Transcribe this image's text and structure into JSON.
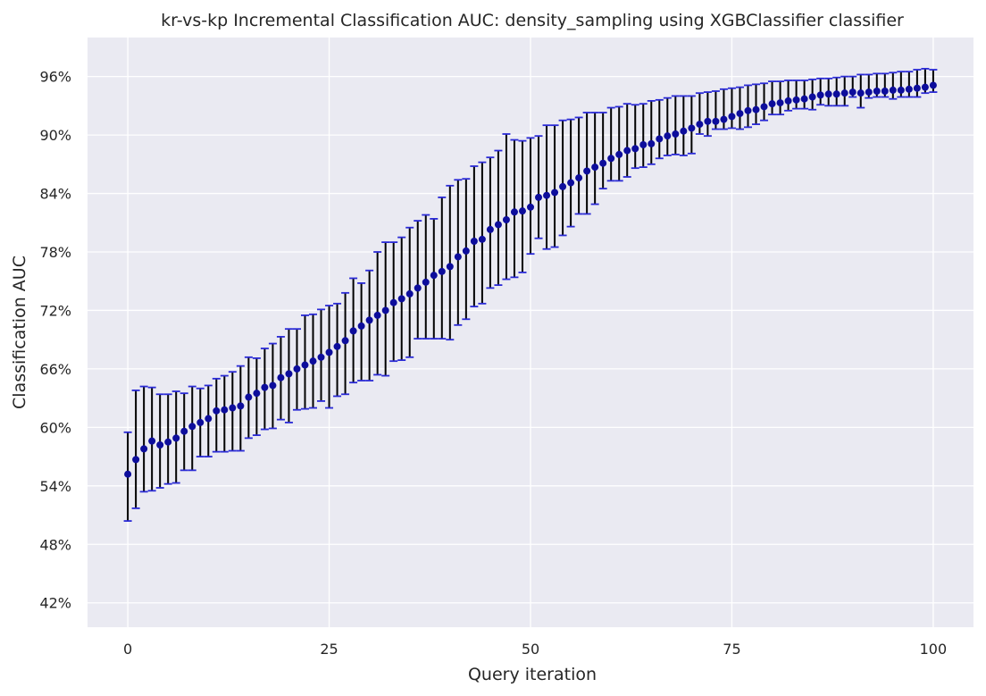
{
  "chart_data": {
    "type": "scatter",
    "title": "kr-vs-kp Incremental Classification AUC: density_sampling using XGBClassifier classifier",
    "xlabel": "Query iteration",
    "ylabel": "Classification AUC",
    "xlim": [
      -5,
      105
    ],
    "ylim": [
      0.395,
      1.0
    ],
    "xticks": [
      0,
      25,
      50,
      75,
      100
    ],
    "xtick_labels": [
      "0",
      "25",
      "50",
      "75",
      "100"
    ],
    "yticks": [
      0.42,
      0.48,
      0.54,
      0.6,
      0.66,
      0.72,
      0.78,
      0.84,
      0.9,
      0.96
    ],
    "ytick_labels": [
      "42%",
      "48%",
      "54%",
      "60%",
      "66%",
      "72%",
      "78%",
      "84%",
      "90%",
      "96%"
    ],
    "grid": true,
    "colors": {
      "background": "#eaeaf2",
      "grid": "#ffffff",
      "marker": "#0d0d9c",
      "cap": "#2a2ad6",
      "errorbar": "#000000"
    },
    "series": [
      {
        "x": [
          0,
          1,
          2,
          3,
          4,
          5,
          6,
          7,
          8,
          9,
          10,
          11,
          12,
          13,
          14,
          15,
          16,
          17,
          18,
          19,
          20,
          21,
          22,
          23,
          24,
          25,
          26,
          27,
          28,
          29,
          30,
          31,
          32,
          33,
          34,
          35,
          36,
          37,
          38,
          39,
          40,
          41,
          42,
          43,
          44,
          45,
          46,
          47,
          48,
          49,
          50,
          51,
          52,
          53,
          54,
          55,
          56,
          57,
          58,
          59,
          60,
          61,
          62,
          63,
          64,
          65,
          66,
          67,
          68,
          69,
          70,
          71,
          72,
          73,
          74,
          75,
          76,
          77,
          78,
          79,
          80,
          81,
          82,
          83,
          84,
          85,
          86,
          87,
          88,
          89,
          90,
          91,
          92,
          93,
          94,
          95,
          96,
          97,
          98,
          99,
          100
        ],
        "y": [
          0.552,
          0.567,
          0.578,
          0.586,
          0.582,
          0.585,
          0.589,
          0.596,
          0.601,
          0.605,
          0.609,
          0.617,
          0.618,
          0.62,
          0.622,
          0.631,
          0.635,
          0.641,
          0.643,
          0.651,
          0.655,
          0.66,
          0.664,
          0.668,
          0.672,
          0.677,
          0.683,
          0.689,
          0.699,
          0.704,
          0.71,
          0.715,
          0.72,
          0.728,
          0.732,
          0.737,
          0.743,
          0.749,
          0.756,
          0.76,
          0.765,
          0.775,
          0.781,
          0.791,
          0.793,
          0.803,
          0.808,
          0.813,
          0.821,
          0.822,
          0.826,
          0.836,
          0.838,
          0.841,
          0.847,
          0.851,
          0.856,
          0.863,
          0.867,
          0.871,
          0.876,
          0.88,
          0.884,
          0.886,
          0.89,
          0.891,
          0.896,
          0.899,
          0.901,
          0.904,
          0.907,
          0.911,
          0.914,
          0.914,
          0.916,
          0.919,
          0.922,
          0.925,
          0.926,
          0.929,
          0.932,
          0.933,
          0.935,
          0.936,
          0.937,
          0.939,
          0.941,
          0.942,
          0.942,
          0.943,
          0.944,
          0.943,
          0.944,
          0.945,
          0.945,
          0.946,
          0.946,
          0.947,
          0.948,
          0.949,
          0.951
        ],
        "ylow": [
          0.504,
          0.517,
          0.534,
          0.535,
          0.538,
          0.542,
          0.543,
          0.556,
          0.556,
          0.57,
          0.57,
          0.575,
          0.575,
          0.576,
          0.576,
          0.589,
          0.592,
          0.598,
          0.599,
          0.608,
          0.605,
          0.618,
          0.619,
          0.62,
          0.627,
          0.62,
          0.632,
          0.634,
          0.646,
          0.648,
          0.648,
          0.654,
          0.653,
          0.668,
          0.669,
          0.672,
          0.691,
          0.691,
          0.691,
          0.691,
          0.69,
          0.705,
          0.711,
          0.724,
          0.727,
          0.743,
          0.746,
          0.752,
          0.754,
          0.759,
          0.778,
          0.794,
          0.783,
          0.785,
          0.797,
          0.806,
          0.819,
          0.819,
          0.829,
          0.845,
          0.853,
          0.853,
          0.857,
          0.866,
          0.867,
          0.87,
          0.876,
          0.879,
          0.88,
          0.879,
          0.881,
          0.901,
          0.899,
          0.906,
          0.906,
          0.907,
          0.906,
          0.908,
          0.911,
          0.915,
          0.921,
          0.921,
          0.925,
          0.927,
          0.927,
          0.926,
          0.931,
          0.93,
          0.93,
          0.93,
          0.939,
          0.928,
          0.938,
          0.939,
          0.939,
          0.937,
          0.939,
          0.939,
          0.939,
          0.943,
          0.944
        ],
        "yhigh": [
          0.595,
          0.638,
          0.642,
          0.641,
          0.634,
          0.634,
          0.637,
          0.635,
          0.642,
          0.64,
          0.643,
          0.65,
          0.653,
          0.657,
          0.663,
          0.672,
          0.671,
          0.681,
          0.686,
          0.693,
          0.701,
          0.701,
          0.715,
          0.716,
          0.721,
          0.725,
          0.727,
          0.738,
          0.753,
          0.748,
          0.761,
          0.78,
          0.79,
          0.79,
          0.795,
          0.805,
          0.812,
          0.818,
          0.814,
          0.836,
          0.848,
          0.854,
          0.855,
          0.868,
          0.872,
          0.877,
          0.884,
          0.901,
          0.895,
          0.894,
          0.897,
          0.899,
          0.91,
          0.91,
          0.915,
          0.916,
          0.918,
          0.923,
          0.923,
          0.923,
          0.928,
          0.929,
          0.932,
          0.931,
          0.932,
          0.935,
          0.936,
          0.938,
          0.94,
          0.94,
          0.94,
          0.943,
          0.944,
          0.945,
          0.947,
          0.948,
          0.949,
          0.951,
          0.952,
          0.953,
          0.955,
          0.955,
          0.956,
          0.956,
          0.956,
          0.957,
          0.958,
          0.958,
          0.959,
          0.96,
          0.96,
          0.962,
          0.962,
          0.963,
          0.963,
          0.964,
          0.965,
          0.965,
          0.967,
          0.968,
          0.967
        ]
      }
    ]
  }
}
